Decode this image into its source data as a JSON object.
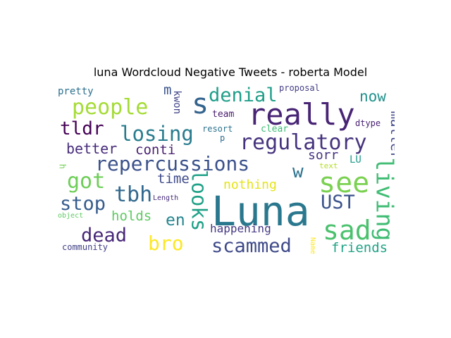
{
  "chart_data": {
    "type": "wordcloud",
    "title": "luna Wordcloud Negative Tweets - roberta Model",
    "words": [
      {
        "text": "Luna",
        "weight": 1.0,
        "color": "#2a788e",
        "rotated": false
      },
      {
        "text": "really",
        "weight": 0.67,
        "color": "#482475",
        "rotated": false
      },
      {
        "text": "see",
        "weight": 0.6,
        "color": "#7ad151",
        "rotated": false
      },
      {
        "text": "sad",
        "weight": 0.6,
        "color": "#4ac16d",
        "rotated": false
      },
      {
        "text": "living",
        "weight": 0.5,
        "color": "#3fbc73",
        "rotated": true
      },
      {
        "text": "s",
        "weight": 0.55,
        "color": "#33638d",
        "rotated": false
      },
      {
        "text": "denial",
        "weight": 0.45,
        "color": "#1f9e89",
        "rotated": false
      },
      {
        "text": "people",
        "weight": 0.46,
        "color": "#a5db36",
        "rotated": false
      },
      {
        "text": "losing",
        "weight": 0.45,
        "color": "#287c8e",
        "rotated": false
      },
      {
        "text": "regulatory",
        "weight": 0.45,
        "color": "#46337e",
        "rotated": false
      },
      {
        "text": "repercussions",
        "weight": 0.44,
        "color": "#3b528b",
        "rotated": false
      },
      {
        "text": "tldr",
        "weight": 0.4,
        "color": "#440154",
        "rotated": false
      },
      {
        "text": "got",
        "weight": 0.43,
        "color": "#6ece58",
        "rotated": false
      },
      {
        "text": "tbh",
        "weight": 0.42,
        "color": "#31688e",
        "rotated": false
      },
      {
        "text": "looks",
        "weight": 0.42,
        "color": "#1fa187",
        "rotated": true
      },
      {
        "text": "w",
        "weight": 0.36,
        "color": "#2c728e",
        "rotated": false
      },
      {
        "text": "UST",
        "weight": 0.38,
        "color": "#3b528b",
        "rotated": false
      },
      {
        "text": "stop",
        "weight": 0.38,
        "color": "#365c8d",
        "rotated": false
      },
      {
        "text": "dead",
        "weight": 0.38,
        "color": "#482878",
        "rotated": false
      },
      {
        "text": "bro",
        "weight": 0.38,
        "color": "#fde725",
        "rotated": false
      },
      {
        "text": "scammed",
        "weight": 0.38,
        "color": "#3e4989",
        "rotated": false
      },
      {
        "text": "en",
        "weight": 0.32,
        "color": "#25858e",
        "rotated": false
      },
      {
        "text": "matter",
        "weight": 0.3,
        "color": "#404688",
        "rotated": true
      },
      {
        "text": "now",
        "weight": 0.28,
        "color": "#21918c",
        "rotated": false
      },
      {
        "text": "better",
        "weight": 0.27,
        "color": "#472d7b",
        "rotated": false
      },
      {
        "text": "conti",
        "weight": 0.25,
        "color": "#481f70",
        "rotated": false
      },
      {
        "text": "time",
        "weight": 0.25,
        "color": "#3e4a89",
        "rotated": false
      },
      {
        "text": "nothing",
        "weight": 0.24,
        "color": "#e5e419",
        "rotated": false
      },
      {
        "text": "holds",
        "weight": 0.25,
        "color": "#5ec962",
        "rotated": false
      },
      {
        "text": "friends",
        "weight": 0.25,
        "color": "#20a386",
        "rotated": false
      },
      {
        "text": "sorr",
        "weight": 0.24,
        "color": "#463480",
        "rotated": false
      },
      {
        "text": "m",
        "weight": 0.25,
        "color": "#3a548c",
        "rotated": false
      },
      {
        "text": "happening",
        "weight": 0.22,
        "color": "#453882",
        "rotated": false
      },
      {
        "text": "kwon",
        "weight": 0.18,
        "color": "#414487",
        "rotated": true
      },
      {
        "text": "pretty",
        "weight": 0.2,
        "color": "#2d708e",
        "rotated": false
      },
      {
        "text": "team",
        "weight": 0.18,
        "color": "#481b6d",
        "rotated": false
      },
      {
        "text": "resort",
        "weight": 0.16,
        "color": "#2c728e",
        "rotated": false
      },
      {
        "text": "clear",
        "weight": 0.18,
        "color": "#3dbc74",
        "rotated": false
      },
      {
        "text": "dtype",
        "weight": 0.16,
        "color": "#482173",
        "rotated": false
      },
      {
        "text": "LU",
        "weight": 0.18,
        "color": "#1f9a8a",
        "rotated": false
      },
      {
        "text": "p",
        "weight": 0.15,
        "color": "#2f6c8e",
        "rotated": false
      },
      {
        "text": "h",
        "weight": 0.15,
        "color": "#73d056",
        "rotated": true
      },
      {
        "text": "text",
        "weight": 0.14,
        "color": "#b5de2b",
        "rotated": false
      },
      {
        "text": "proposal",
        "weight": 0.15,
        "color": "#433e85",
        "rotated": false
      },
      {
        "text": "community",
        "weight": 0.15,
        "color": "#424086",
        "rotated": false
      },
      {
        "text": "object",
        "weight": 0.13,
        "color": "#5ec962",
        "rotated": false
      },
      {
        "text": "Length",
        "weight": 0.13,
        "color": "#472c7a",
        "rotated": false
      },
      {
        "text": "Name",
        "weight": 0.13,
        "color": "#fde725",
        "rotated": true
      }
    ]
  }
}
